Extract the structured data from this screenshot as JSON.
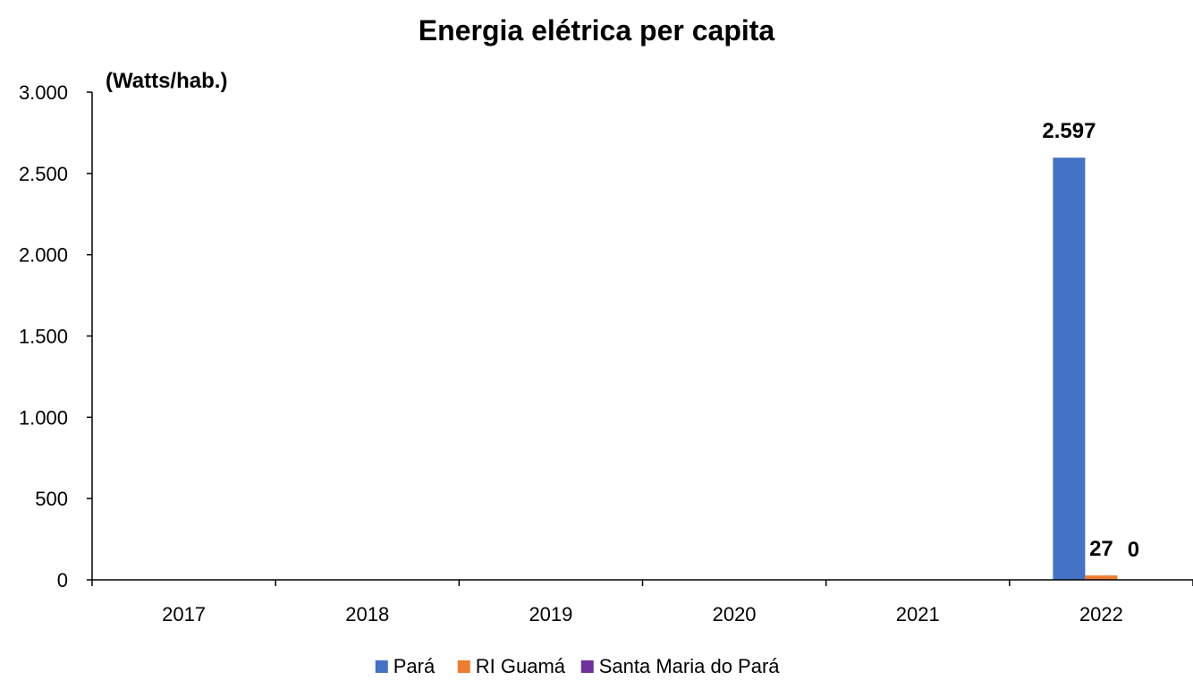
{
  "chart_data": {
    "type": "bar",
    "title": "Energia elétrica per capita",
    "ylabel": "(Watts/hab.)",
    "xlabel": "",
    "categories": [
      "2017",
      "2018",
      "2019",
      "2020",
      "2021",
      "2022"
    ],
    "series": [
      {
        "name": "Pará",
        "color": "#4472C4",
        "values": [
          null,
          null,
          null,
          null,
          null,
          2597
        ],
        "labels": [
          null,
          null,
          null,
          null,
          null,
          "2.597"
        ]
      },
      {
        "name": "RI Guamá",
        "color": "#ED7D31",
        "values": [
          null,
          null,
          null,
          null,
          null,
          27
        ],
        "labels": [
          null,
          null,
          null,
          null,
          null,
          "27"
        ]
      },
      {
        "name": "Santa Maria do Pará",
        "color": "#7030A0",
        "values": [
          null,
          null,
          null,
          null,
          null,
          0
        ],
        "labels": [
          null,
          null,
          null,
          null,
          null,
          "0"
        ]
      }
    ],
    "ylim": [
      0,
      3000
    ],
    "yticks": [
      0,
      500,
      1000,
      1500,
      2000,
      2500,
      3000
    ],
    "ytick_labels": [
      "0",
      "500",
      "1.000",
      "1.500",
      "2.000",
      "2.500",
      "3.000"
    ],
    "grid": false,
    "legend_position": "bottom"
  }
}
